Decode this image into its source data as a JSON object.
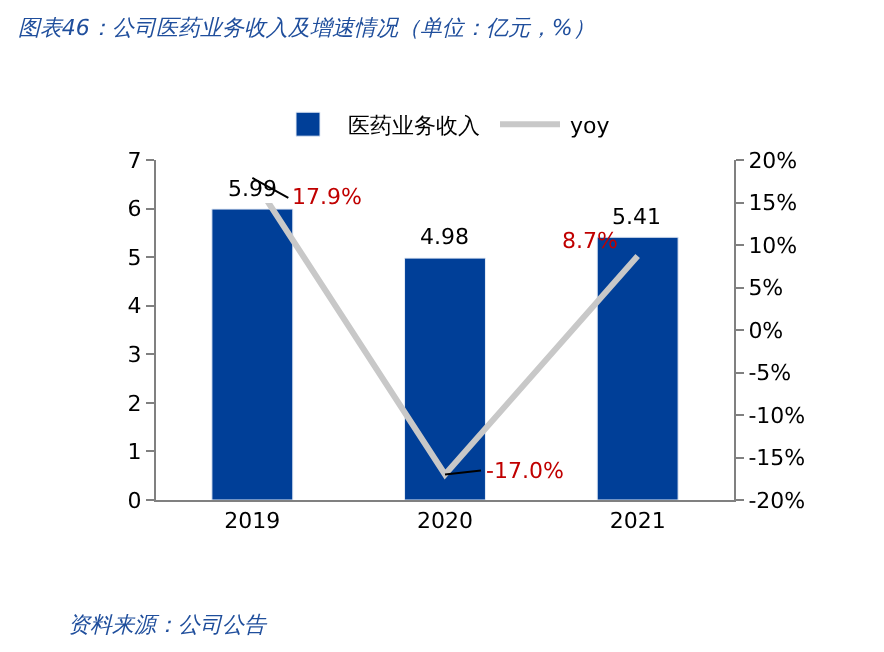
{
  "chart_data": {
    "type": "bar",
    "title": "图表46：公司医药业务收入及增速情况（单位：亿元，%）",
    "categories": [
      "2019",
      "2020",
      "2021"
    ],
    "series": [
      {
        "name": "医药业务收入",
        "color": "#003f98",
        "values": [
          5.99,
          4.98,
          5.41
        ],
        "value_labels": [
          "5.99",
          "4.98",
          "5.41"
        ]
      },
      {
        "name": "yoy",
        "type": "line",
        "axis": "y2",
        "color": "#c8c8c8",
        "values": [
          17.9,
          -17.0,
          8.7
        ],
        "value_labels": [
          "17.9%",
          "-17.0%",
          "8.7%"
        ]
      }
    ],
    "ylim": [
      0,
      7
    ],
    "yticks": [
      0,
      1,
      2,
      3,
      4,
      5,
      6,
      7
    ],
    "y2lim": [
      -20,
      20
    ],
    "y2ticks": [
      {
        "value": -20,
        "label": "-20%"
      },
      {
        "value": -15,
        "label": "-15%"
      },
      {
        "value": -10,
        "label": "-10%"
      },
      {
        "value": -5,
        "label": "-5%"
      },
      {
        "value": 0,
        "label": "0%"
      },
      {
        "value": 5,
        "label": "5%"
      },
      {
        "value": 10,
        "label": "10%"
      },
      {
        "value": 15,
        "label": "15%"
      },
      {
        "value": 20,
        "label": "20%"
      }
    ],
    "legend": "top",
    "marker": "none",
    "annotations": [
      "资料来源：公司公告"
    ]
  }
}
